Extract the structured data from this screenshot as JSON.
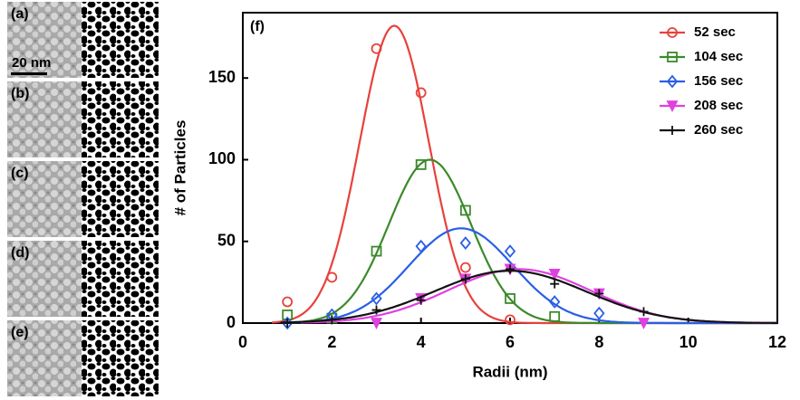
{
  "panels": [
    "(a)",
    "(b)",
    "(c)",
    "(d)",
    "(e)"
  ],
  "scale_bar": "20 nm",
  "chart_data": {
    "type": "scatter-fit",
    "panel_label": "(f)",
    "x_label": "Radii (nm)",
    "y_label": "# of Particles",
    "xlim": [
      0,
      12
    ],
    "ylim": [
      0,
      190
    ],
    "xticks": [
      0,
      2,
      4,
      6,
      8,
      10,
      12
    ],
    "yticks": [
      0,
      50,
      100,
      150
    ],
    "legend": "upper right",
    "series": [
      {
        "name": "52 sec",
        "color": "#e8413c",
        "marker": "circle",
        "x": [
          1,
          2,
          3,
          4,
          5,
          6
        ],
        "values": [
          13,
          28,
          168,
          141,
          34,
          2
        ],
        "fit": {
          "amplitude": 182,
          "center": 3.4,
          "sigma": 0.78
        }
      },
      {
        "name": "104 sec",
        "color": "#3a8a2a",
        "marker": "square",
        "x": [
          1,
          2,
          3,
          4,
          5,
          6,
          7
        ],
        "values": [
          5,
          3,
          44,
          97,
          69,
          15,
          4
        ],
        "fit": {
          "amplitude": 100,
          "center": 4.2,
          "sigma": 0.92
        }
      },
      {
        "name": "156 sec",
        "color": "#2a5ee8",
        "marker": "diamond",
        "x": [
          1,
          2,
          3,
          4,
          5,
          6,
          7,
          8
        ],
        "values": [
          0,
          5,
          15,
          47,
          49,
          44,
          13,
          6
        ],
        "fit": {
          "amplitude": 58,
          "center": 4.9,
          "sigma": 1.17
        }
      },
      {
        "name": "208 sec",
        "color": "#e040e0",
        "marker": "triangle",
        "x": [
          3,
          4,
          5,
          6,
          7,
          8,
          9
        ],
        "values": [
          0,
          15,
          27,
          33,
          30,
          18,
          0
        ],
        "fit": {
          "amplitude": 33,
          "center": 6.2,
          "sigma": 1.6
        }
      },
      {
        "name": "260 sec",
        "color": "#111111",
        "marker": "plus",
        "x": [
          1,
          2,
          3,
          4,
          5,
          6,
          7,
          8,
          9
        ],
        "values": [
          0,
          2,
          8,
          14,
          27,
          33,
          24,
          18,
          7
        ],
        "fit": {
          "amplitude": 32,
          "center": 6.0,
          "sigma": 1.7
        }
      }
    ]
  }
}
